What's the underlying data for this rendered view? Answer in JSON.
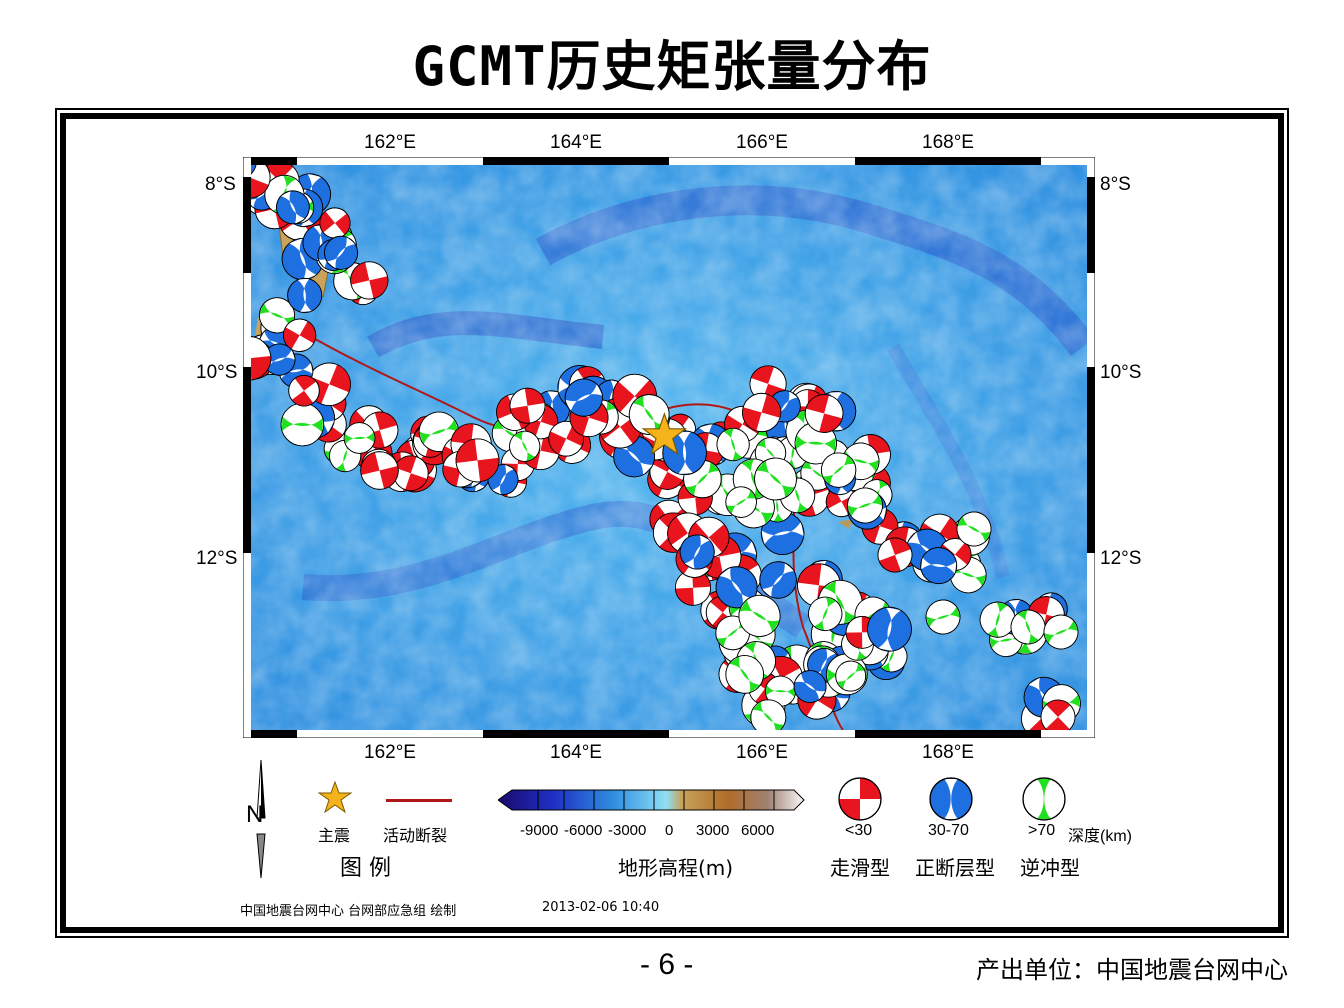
{
  "title": "GCMT历史矩张量分布",
  "map": {
    "lon_labels": [
      "162°E",
      "164°E",
      "166°E",
      "168°E"
    ],
    "lat_labels": [
      "8°S",
      "10°S",
      "12°S"
    ],
    "lon_range": [
      160.5,
      169.6
    ],
    "lat_range": [
      -7.9,
      -13.95
    ],
    "mainshock": {
      "lon": 165.0,
      "lat": -10.8
    }
  },
  "legend": {
    "mainshock_label": "主震",
    "fault_label": "活动断裂",
    "legend_title": "图  例",
    "colorbar_ticks": [
      "-9000",
      "-6000",
      "-3000",
      "0",
      "3000",
      "6000"
    ],
    "colorbar_caption": "地形高程(m)",
    "depth_bins": [
      {
        "range": "<30",
        "type": "走滑型",
        "color": "#e8141e"
      },
      {
        "range": "30-70",
        "type": "正断层型",
        "color": "#1e6fe0"
      },
      {
        "range": ">70",
        "type": "逆冲型",
        "color": "#21e020"
      }
    ],
    "depth_unit": "深度(km)",
    "north_label": "N"
  },
  "footer": {
    "credit": "中国地震台网中心 台网部应急组 绘制",
    "timestamp": "2013-02-06 10:40"
  },
  "page_number": "- 6 -",
  "producer": "产出单位：中国地震台网中心",
  "colors": {
    "mainshock": "#f5b21a",
    "fault": "#b01818",
    "ocean": "#3c9fe6"
  }
}
